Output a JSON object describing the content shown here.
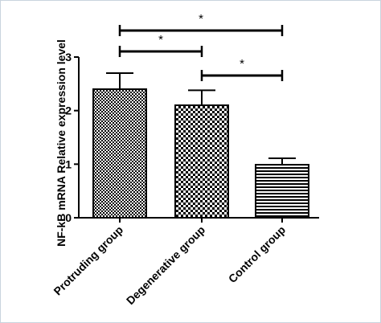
{
  "chart_data": {
    "type": "bar",
    "ylabel": "NF-kB mRNA Relative expression level",
    "ylim": [
      0,
      3
    ],
    "yticks": [
      "0",
      "1",
      "2",
      "3"
    ],
    "categories": [
      "Protruding group",
      "Degenerative group",
      "Control group"
    ],
    "values": [
      2.4,
      2.1,
      0.99
    ],
    "errors": [
      0.3,
      0.28,
      0.12
    ],
    "patterns": [
      "fine-checker",
      "coarse-checker",
      "horizontal-stripes"
    ],
    "significance": [
      {
        "from": 0,
        "to": 2,
        "label": "*"
      },
      {
        "from": 0,
        "to": 1,
        "label": "*"
      },
      {
        "from": 1,
        "to": 2,
        "label": "*"
      }
    ],
    "grid": false,
    "colors": {
      "bar_fill": "#000000",
      "background": "#ffffff"
    }
  }
}
